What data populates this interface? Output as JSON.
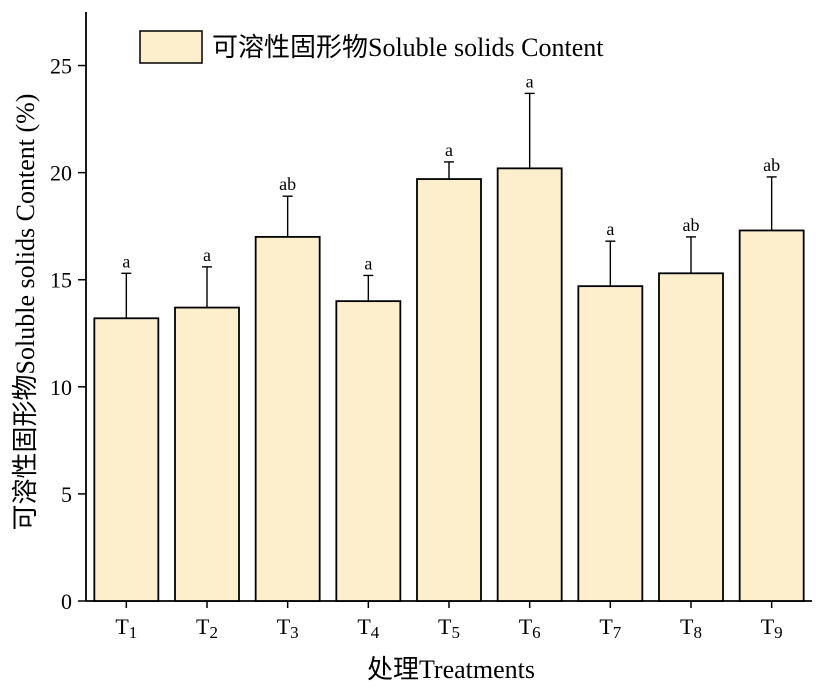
{
  "chart_data": {
    "type": "bar",
    "categories": [
      "T1",
      "T2",
      "T3",
      "T4",
      "T5",
      "T6",
      "T7",
      "T8",
      "T9"
    ],
    "category_labels": [
      {
        "base": "T",
        "sub": "1"
      },
      {
        "base": "T",
        "sub": "2"
      },
      {
        "base": "T",
        "sub": "3"
      },
      {
        "base": "T",
        "sub": "4"
      },
      {
        "base": "T",
        "sub": "5"
      },
      {
        "base": "T",
        "sub": "6"
      },
      {
        "base": "T",
        "sub": "7"
      },
      {
        "base": "T",
        "sub": "8"
      },
      {
        "base": "T",
        "sub": "9"
      }
    ],
    "series": [
      {
        "name": "可溶性固形物Soluble solids Content",
        "values": [
          13.2,
          13.7,
          17.0,
          14.0,
          19.7,
          20.2,
          14.7,
          15.3,
          17.3
        ],
        "errors": [
          2.1,
          1.9,
          1.9,
          1.2,
          0.8,
          3.5,
          2.1,
          1.7,
          2.5
        ],
        "significance": [
          "a",
          "a",
          "ab",
          "a",
          "a",
          "a",
          "a",
          "ab",
          "ab"
        ]
      }
    ],
    "xlabel": "处理Treatments",
    "ylabel": "可溶性固形物Soluble solids Content (%)",
    "ylim": [
      0,
      27.5
    ],
    "yticks": [
      0,
      5,
      10,
      15,
      20,
      25
    ],
    "grid": false,
    "legend_position": "top-left",
    "colors": {
      "bar_fill": "#FDEFCB",
      "bar_stroke": "#000000"
    }
  }
}
